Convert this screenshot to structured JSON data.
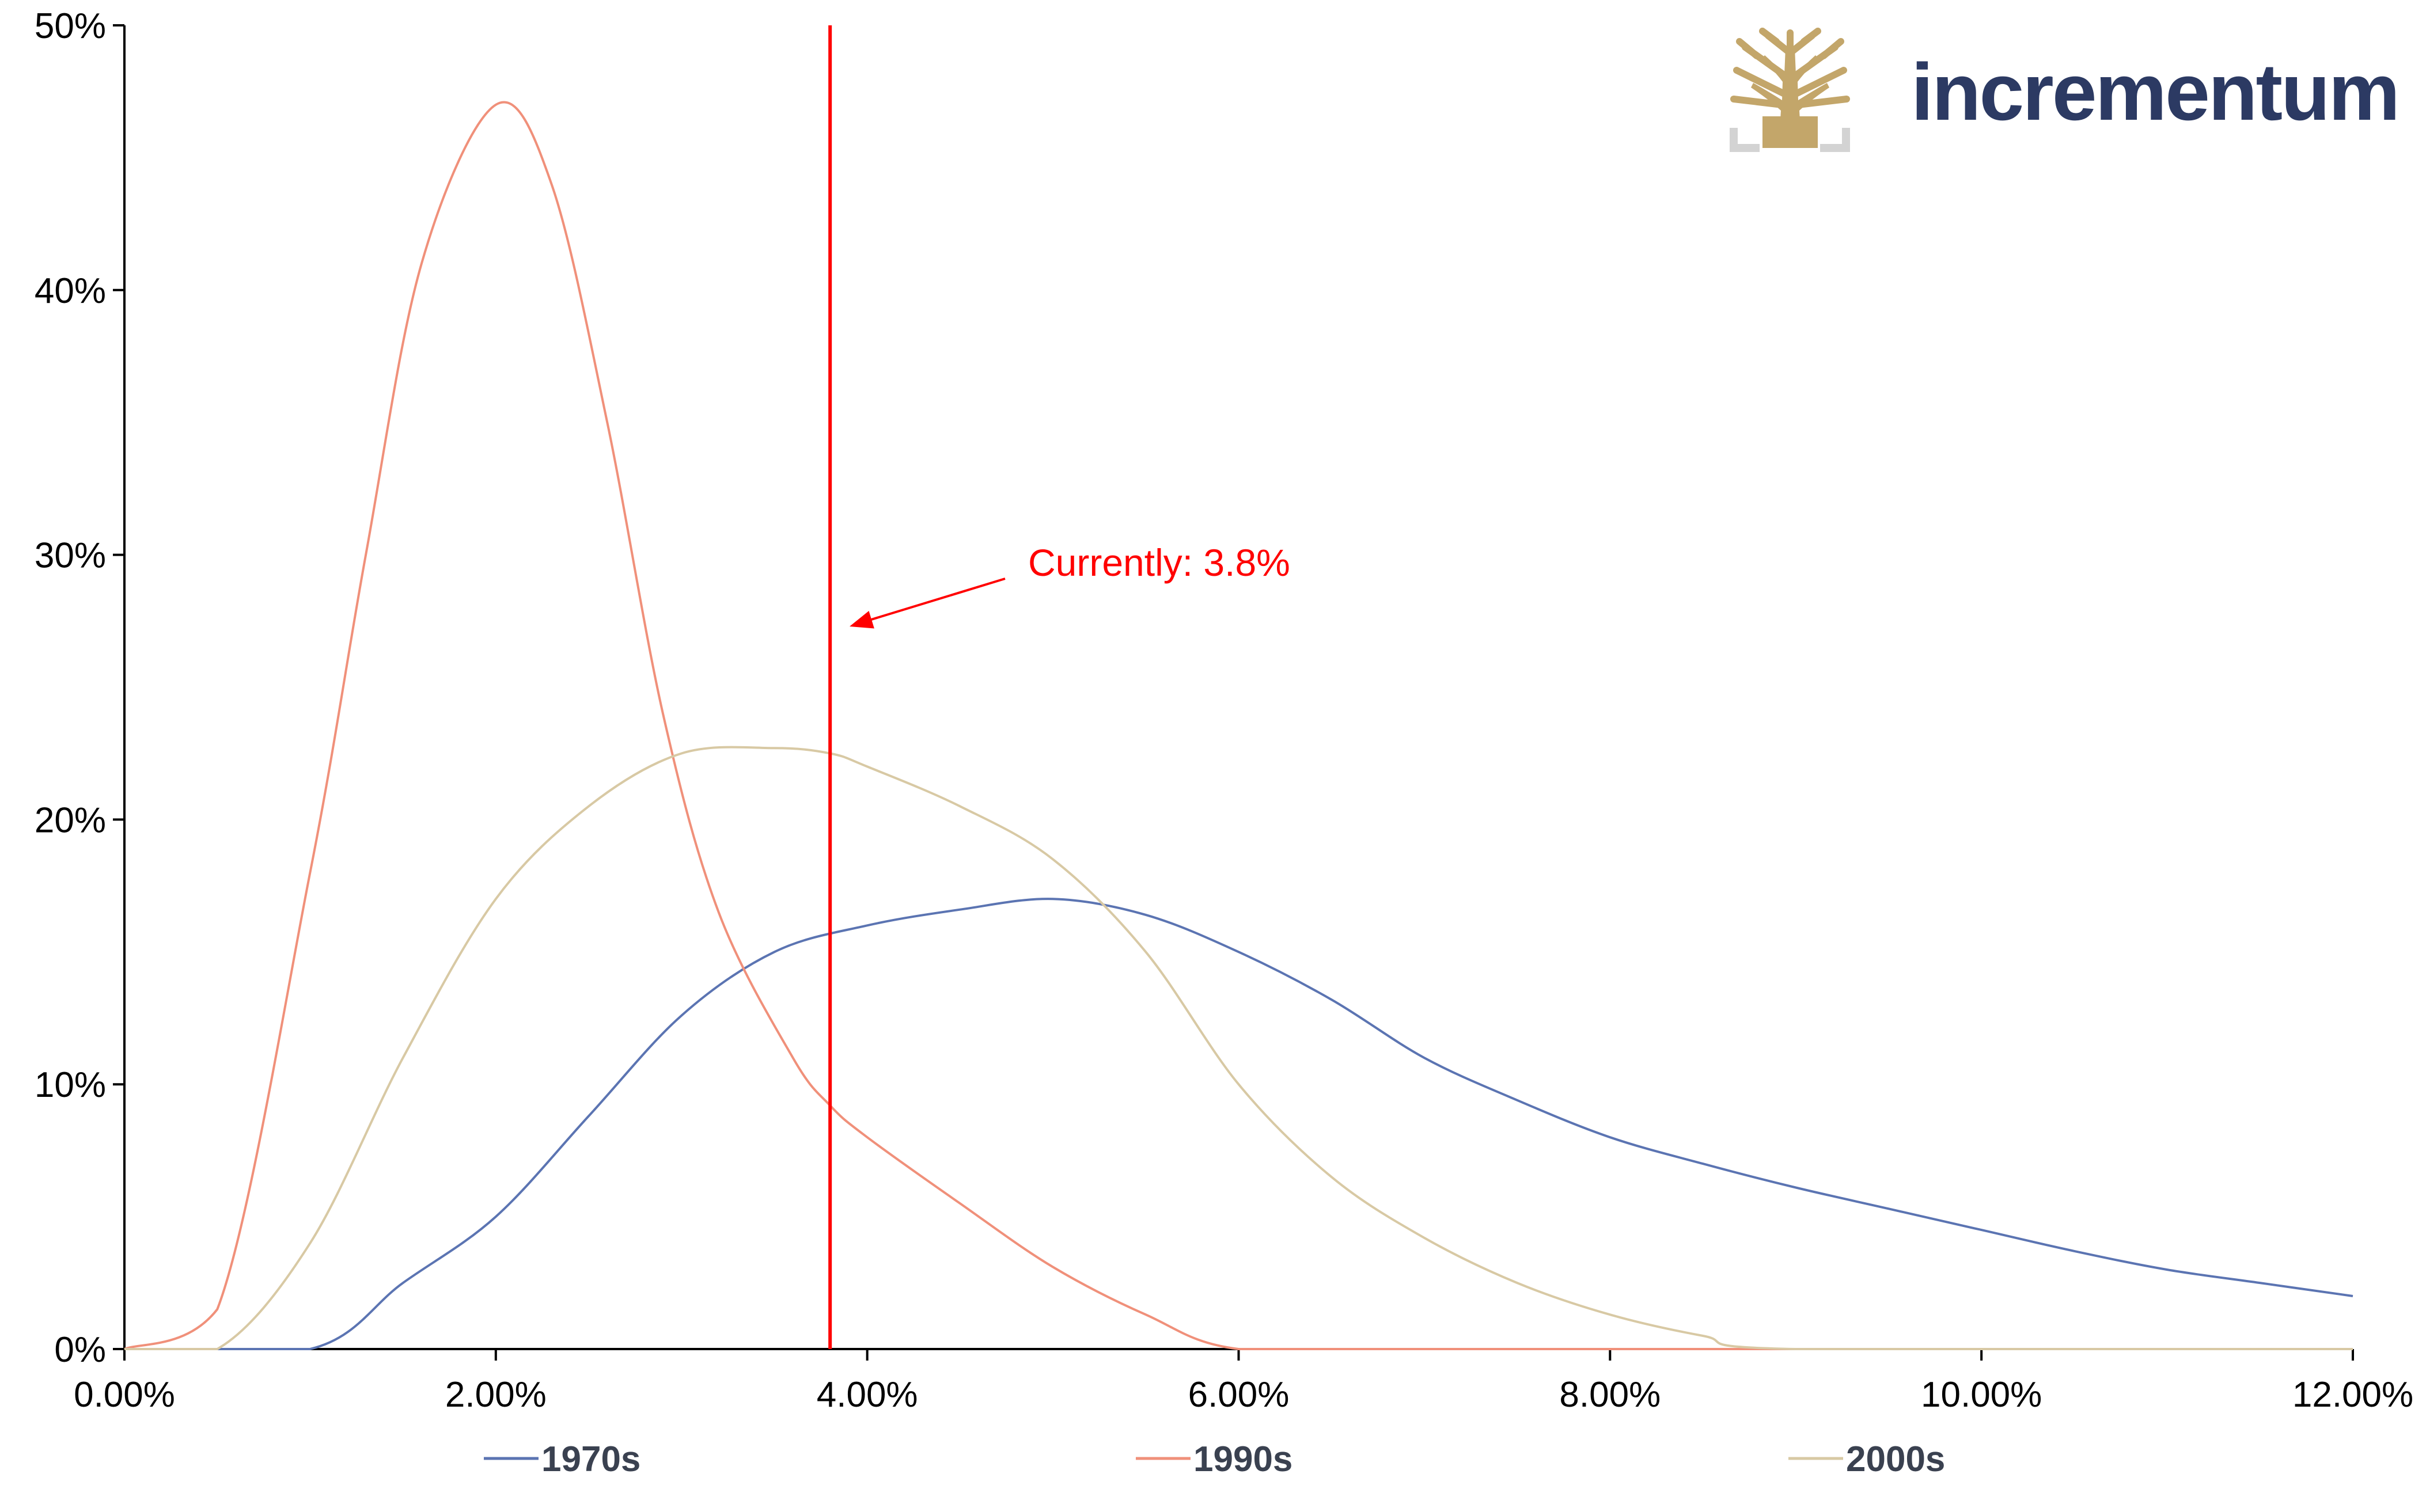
{
  "brand": {
    "name": "incrementum",
    "logo_icon": "tree-icon",
    "text_color": "#2c3a63",
    "tree_color": "#c3a66a",
    "frame_color": "#d3d3d3"
  },
  "chart_data": {
    "type": "line",
    "title": "",
    "xlabel": "",
    "ylabel": "",
    "xlim": [
      0,
      12
    ],
    "ylim": [
      0,
      50
    ],
    "x_ticks": [
      "0.00%",
      "2.00%",
      "4.00%",
      "6.00%",
      "8.00%",
      "10.00%",
      "12.00%"
    ],
    "y_ticks": [
      "0%",
      "10%",
      "20%",
      "30%",
      "40%",
      "50%"
    ],
    "grid": false,
    "legend_position": "bottom",
    "series": [
      {
        "name": "1970s",
        "color": "#5b74b2",
        "x": [
          0,
          1.0,
          1.5,
          2.0,
          2.5,
          3.0,
          3.5,
          4.0,
          4.5,
          5.0,
          5.5,
          6.0,
          6.5,
          7.0,
          7.5,
          8.0,
          8.5,
          9.0,
          9.5,
          10.0,
          10.5,
          11.0,
          11.5,
          12.0
        ],
        "values": [
          0,
          0,
          2.5,
          5.0,
          8.8,
          12.6,
          15.0,
          16.0,
          16.6,
          17.0,
          16.4,
          15.0,
          13.2,
          11.0,
          9.4,
          8.0,
          7.0,
          6.1,
          5.3,
          4.5,
          3.7,
          3.0,
          2.5,
          2.0
        ]
      },
      {
        "name": "1990s",
        "color": "#f0907a",
        "x": [
          0,
          0.5,
          1.0,
          1.3,
          1.6,
          2.0,
          2.3,
          2.6,
          2.9,
          3.2,
          3.6,
          3.8,
          4.0,
          4.5,
          5.0,
          5.5,
          6.0,
          7.0,
          12.0
        ],
        "values": [
          0,
          1.5,
          18.0,
          30.0,
          41.0,
          47.0,
          44.0,
          35.0,
          24.0,
          16.5,
          11.0,
          9.2,
          8.0,
          5.5,
          3.1,
          1.3,
          0,
          0,
          0
        ]
      },
      {
        "name": "2000s",
        "color": "#d8c9a4",
        "x": [
          0,
          0.5,
          1.0,
          1.5,
          2.0,
          2.5,
          3.0,
          3.5,
          3.8,
          4.0,
          4.5,
          5.0,
          5.5,
          6.0,
          6.5,
          7.0,
          7.5,
          8.0,
          8.5,
          9.0,
          12.0
        ],
        "values": [
          0,
          0,
          4.0,
          11.0,
          17.0,
          20.5,
          22.5,
          22.7,
          22.5,
          22.0,
          20.5,
          18.5,
          15.0,
          10.0,
          6.5,
          4.2,
          2.5,
          1.3,
          0.5,
          0,
          0
        ]
      }
    ],
    "reference_line": {
      "x": 3.8,
      "color": "#ff0000",
      "label": "Currently: 3.8%"
    }
  }
}
